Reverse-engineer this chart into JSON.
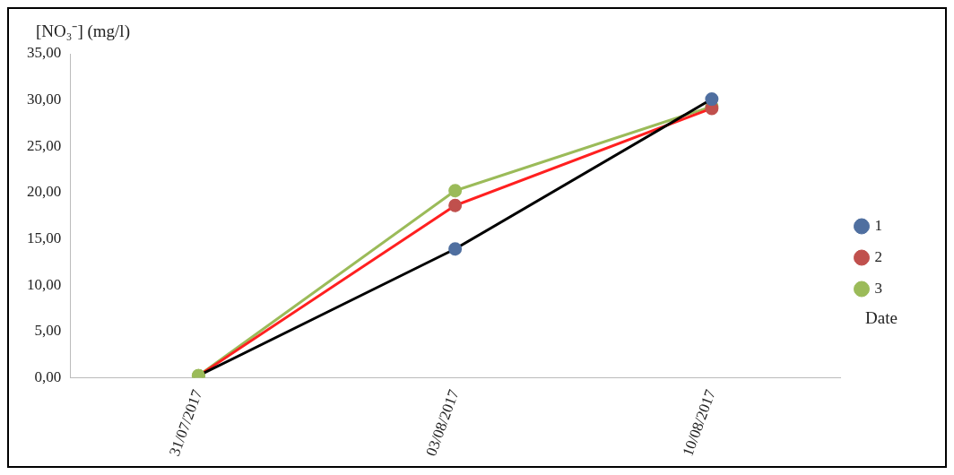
{
  "chart_data": {
    "type": "line",
    "ylabel": "[NO₃⁻] (mg/l)",
    "xlabel": "Date",
    "categories": [
      "31/07/2017",
      "03/08/2017",
      "10/08/2017"
    ],
    "series": [
      {
        "name": "1",
        "color": "#000000",
        "colors": [
          "#9bbb59",
          "#4f6fa0",
          "#4f6fa0"
        ],
        "values": [
          0.2,
          13.9,
          30.1
        ]
      },
      {
        "name": "2",
        "color": "#ff2020",
        "colors": [
          "#9bbb59",
          "#c0504d",
          "#c0504d"
        ],
        "values": [
          0.2,
          18.6,
          29.1
        ]
      },
      {
        "name": "3",
        "color": "#9bbb59",
        "colors": [
          "#9bbb59",
          "#9bbb59",
          "#9bbb59"
        ],
        "values": [
          0.2,
          20.2,
          29.3
        ]
      }
    ],
    "ylim": [
      0,
      35
    ],
    "yticks": [
      {
        "value": 0,
        "label": "0,00"
      },
      {
        "value": 5,
        "label": "5,00"
      },
      {
        "value": 10,
        "label": "10,00"
      },
      {
        "value": 15,
        "label": "15,00"
      },
      {
        "value": 20,
        "label": "20,00"
      },
      {
        "value": 25,
        "label": "25,00"
      },
      {
        "value": 30,
        "label": "30,00"
      },
      {
        "value": 35,
        "label": "35,00"
      }
    ],
    "grid": false,
    "legend": "right",
    "marker": "circle",
    "line_style": "solid"
  }
}
